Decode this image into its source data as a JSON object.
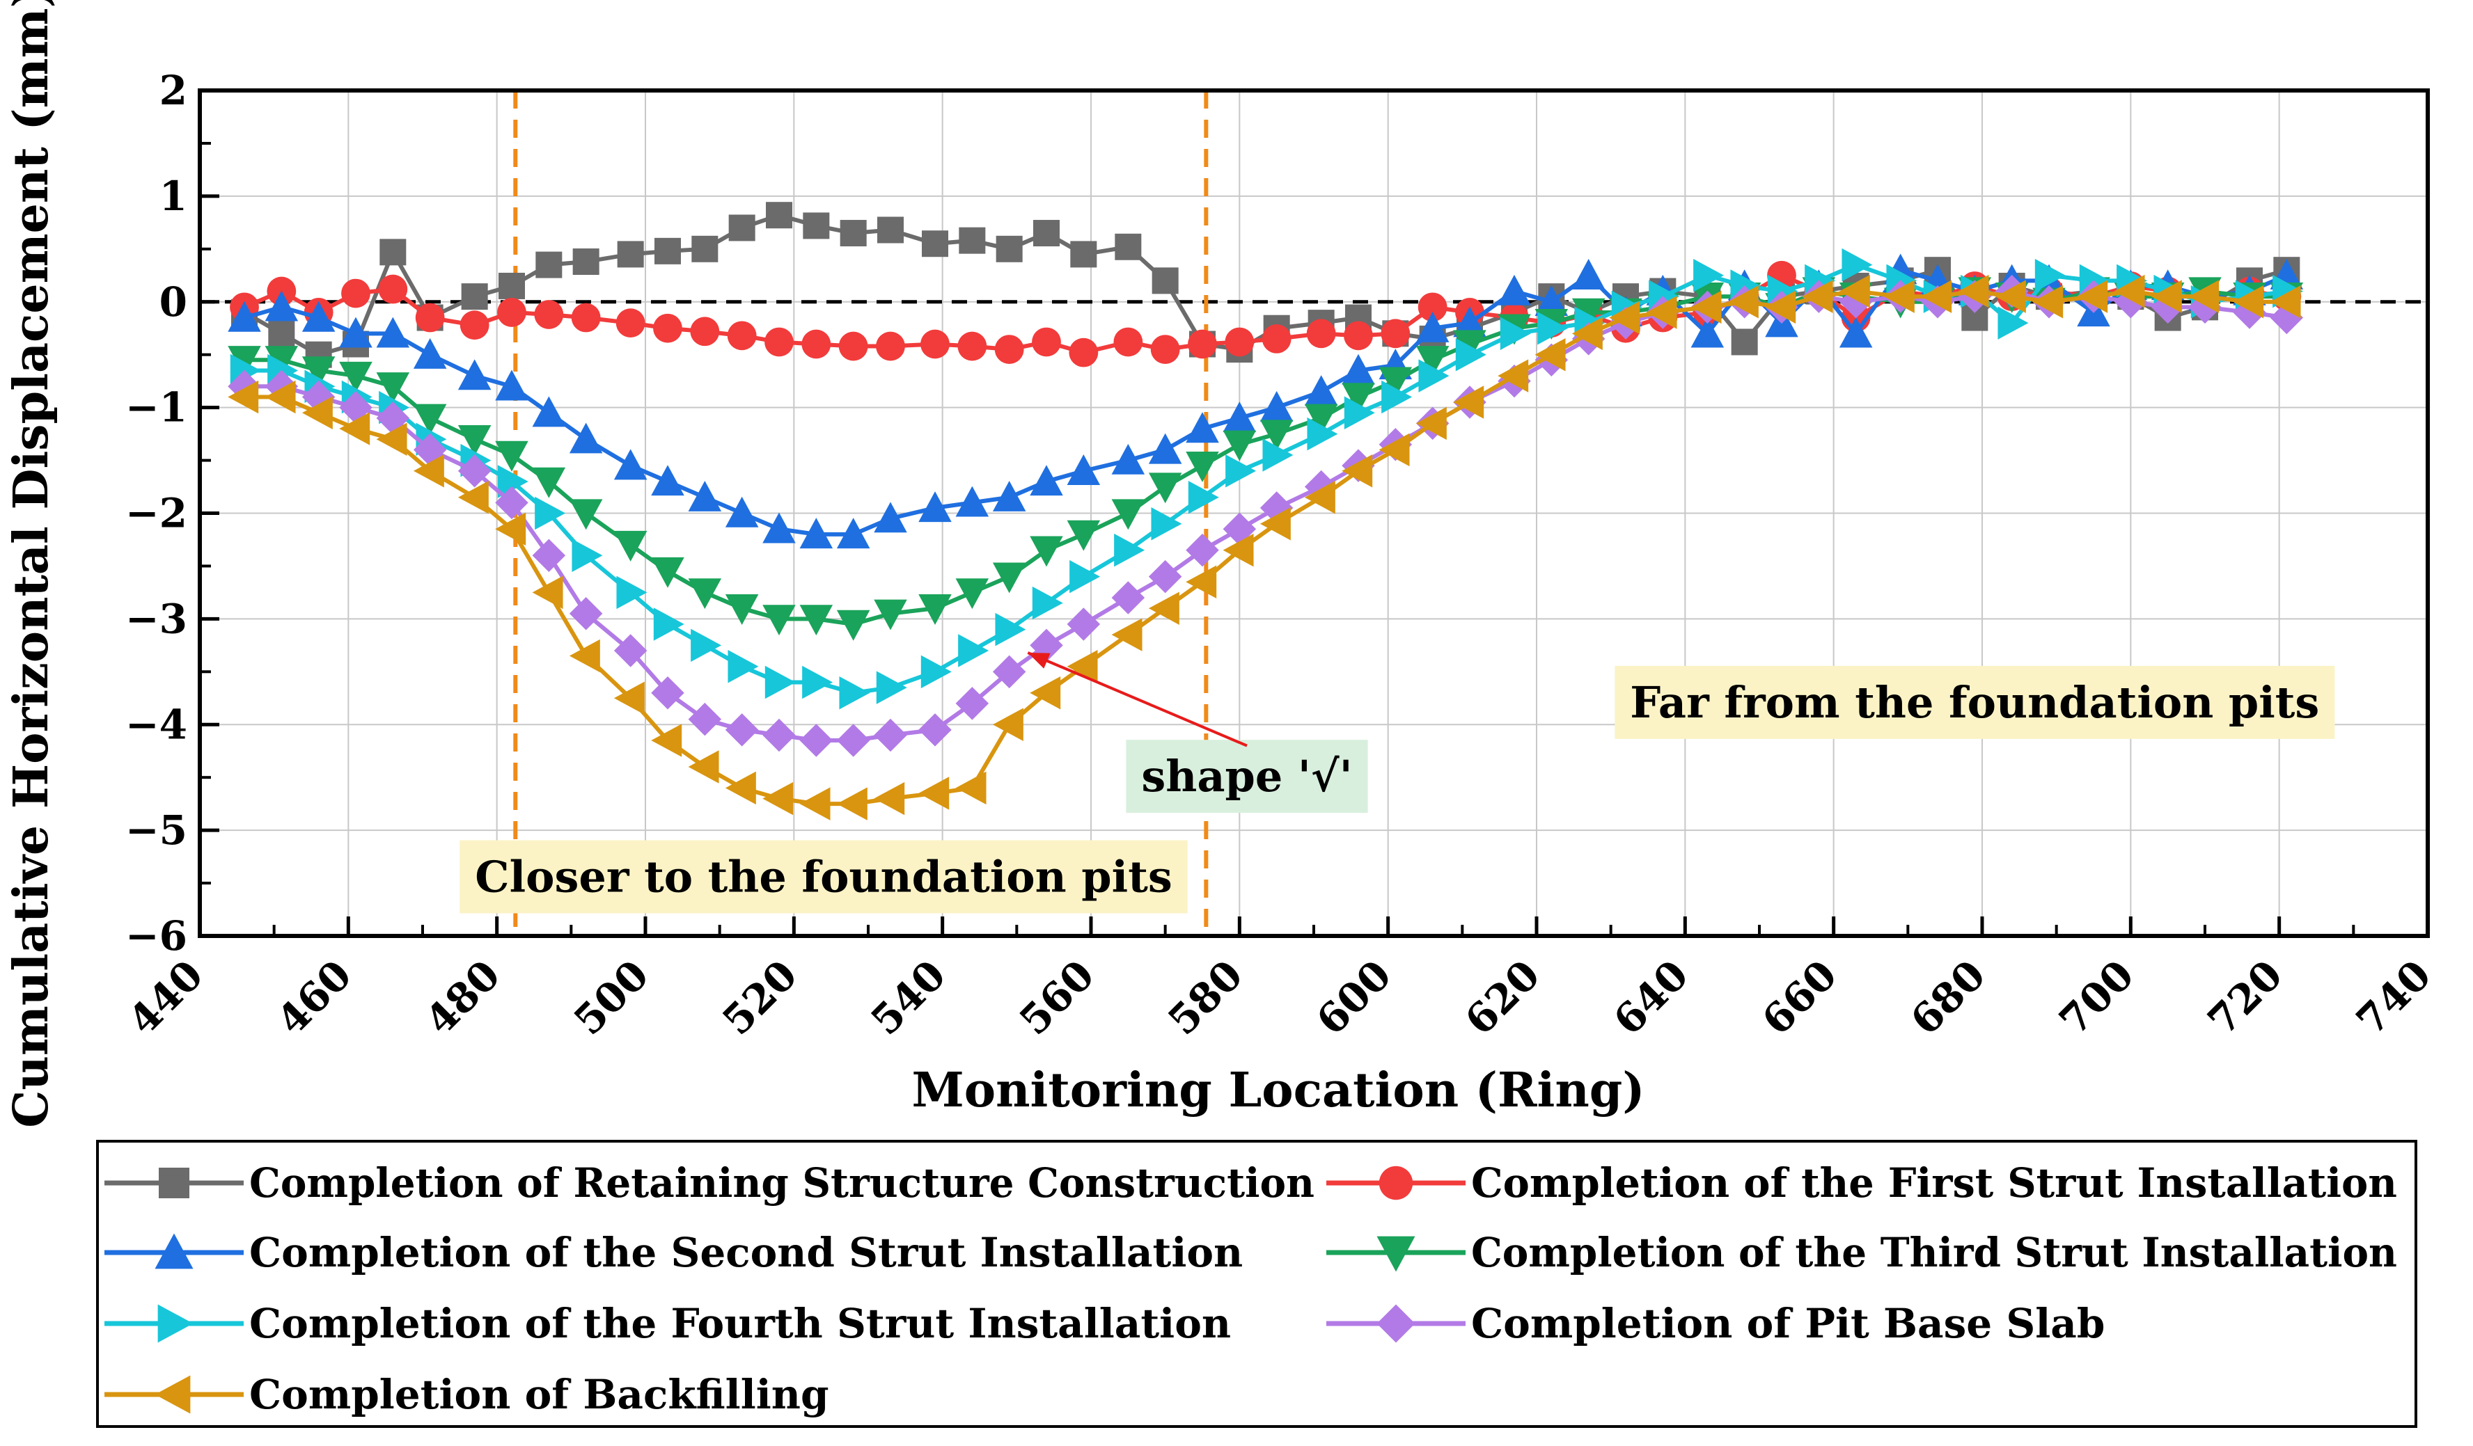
{
  "chart_data": {
    "type": "line",
    "title": "",
    "xlabel": "Monitoring Location (Ring)",
    "ylabel": "Cumulative Horizontal Displacement (mm)",
    "xlim": [
      440,
      740
    ],
    "ylim": [
      -6,
      2
    ],
    "xticks": [
      440,
      460,
      480,
      500,
      520,
      540,
      560,
      580,
      600,
      620,
      640,
      660,
      680,
      700,
      720,
      740
    ],
    "yticks": [
      2,
      1,
      0,
      -1,
      -2,
      -3,
      -4,
      -5,
      -6
    ],
    "ytick_labels": [
      "2",
      "1",
      "0",
      "−1",
      "−2",
      "−3",
      "−4",
      "−5",
      "−6"
    ],
    "grid": true,
    "reference_line_y": 0,
    "zone_boundaries_x": [
      482.5,
      575.5
    ],
    "series": [
      {
        "name": "Completion of Retaining Structure Construction",
        "color": "#6b6b6b",
        "marker": "square",
        "x": [
          446,
          451,
          456,
          461,
          466,
          471,
          477,
          482,
          487,
          492,
          498,
          503,
          508,
          513,
          518,
          523,
          528,
          533,
          539,
          544,
          549,
          554,
          559,
          565,
          570,
          575,
          580,
          585,
          591,
          596,
          601,
          606,
          611,
          617,
          622,
          627,
          632,
          637,
          643,
          648,
          653,
          658,
          663,
          669,
          674,
          679,
          684,
          689,
          695,
          700,
          705,
          710,
          716,
          721
        ],
        "y": [
          -0.1,
          -0.3,
          -0.5,
          -0.4,
          0.47,
          -0.15,
          0.05,
          0.15,
          0.35,
          0.38,
          0.45,
          0.48,
          0.5,
          0.7,
          0.82,
          0.72,
          0.65,
          0.68,
          0.55,
          0.58,
          0.5,
          0.65,
          0.45,
          0.52,
          0.2,
          -0.4,
          -0.45,
          -0.25,
          -0.2,
          -0.15,
          -0.3,
          -0.35,
          -0.25,
          -0.1,
          0.05,
          -0.1,
          0.05,
          0.1,
          0.05,
          -0.38,
          0.05,
          0.1,
          0.15,
          0.2,
          0.3,
          -0.15,
          0.15,
          0.05,
          0.1,
          0.05,
          -0.15,
          -0.05,
          0.2,
          0.3
        ]
      },
      {
        "name": "Completion of the First Strut Installation",
        "color": "#f23b3b",
        "marker": "circle",
        "x": [
          446,
          451,
          456,
          461,
          466,
          471,
          477,
          482,
          487,
          492,
          498,
          503,
          508,
          513,
          518,
          523,
          528,
          533,
          539,
          544,
          549,
          554,
          559,
          565,
          570,
          575,
          580,
          585,
          591,
          596,
          601,
          606,
          611,
          617,
          622,
          627,
          632,
          637,
          643,
          648,
          653,
          658,
          663,
          669,
          674,
          679,
          684,
          689,
          695,
          700,
          705,
          710,
          716,
          721
        ],
        "y": [
          -0.05,
          0.1,
          -0.1,
          0.08,
          0.12,
          -0.15,
          -0.22,
          -0.1,
          -0.12,
          -0.15,
          -0.2,
          -0.25,
          -0.28,
          -0.32,
          -0.38,
          -0.4,
          -0.42,
          -0.42,
          -0.4,
          -0.42,
          -0.45,
          -0.38,
          -0.48,
          -0.38,
          -0.45,
          -0.4,
          -0.38,
          -0.35,
          -0.3,
          -0.32,
          -0.3,
          -0.05,
          -0.1,
          -0.15,
          -0.2,
          -0.12,
          -0.25,
          -0.15,
          -0.1,
          0.05,
          0.25,
          0.1,
          -0.15,
          0.1,
          0.05,
          0.15,
          0.05,
          0.1,
          0.05,
          0.15,
          0.1,
          0.05,
          0.1,
          0.05
        ]
      },
      {
        "name": "Completion of the Second Strut Installation",
        "color": "#1f6fe0",
        "marker": "triangle-up",
        "x": [
          446,
          451,
          456,
          461,
          466,
          471,
          477,
          482,
          487,
          492,
          498,
          503,
          508,
          513,
          518,
          523,
          528,
          533,
          539,
          544,
          549,
          554,
          559,
          565,
          570,
          575,
          580,
          585,
          591,
          596,
          601,
          606,
          611,
          617,
          622,
          627,
          632,
          637,
          643,
          648,
          653,
          658,
          663,
          669,
          674,
          679,
          684,
          689,
          695,
          700,
          705,
          710,
          716,
          721
        ],
        "y": [
          -0.15,
          -0.05,
          -0.15,
          -0.3,
          -0.3,
          -0.5,
          -0.7,
          -0.8,
          -1.05,
          -1.3,
          -1.55,
          -1.7,
          -1.85,
          -2.0,
          -2.15,
          -2.2,
          -2.2,
          -2.05,
          -1.95,
          -1.9,
          -1.85,
          -1.7,
          -1.6,
          -1.5,
          -1.4,
          -1.2,
          -1.1,
          -1.0,
          -0.85,
          -0.65,
          -0.6,
          -0.25,
          -0.2,
          0.1,
          0.0,
          0.25,
          -0.1,
          0.1,
          -0.3,
          0.15,
          -0.2,
          0.15,
          -0.3,
          0.3,
          0.2,
          0.1,
          0.2,
          0.2,
          -0.1,
          0.15,
          0.15,
          0.05,
          0.1,
          0.25
        ]
      },
      {
        "name": "Completion of the Third Strut Installation",
        "color": "#1aa35a",
        "marker": "triangle-down",
        "x": [
          446,
          451,
          456,
          461,
          466,
          471,
          477,
          482,
          487,
          492,
          498,
          503,
          508,
          513,
          518,
          523,
          528,
          533,
          539,
          544,
          549,
          554,
          559,
          565,
          570,
          575,
          580,
          585,
          591,
          596,
          601,
          606,
          611,
          617,
          622,
          627,
          632,
          637,
          643,
          648,
          653,
          658,
          663,
          669,
          674,
          679,
          684,
          689,
          695,
          700,
          705,
          710,
          716,
          721
        ],
        "y": [
          -0.55,
          -0.55,
          -0.65,
          -0.7,
          -0.8,
          -1.1,
          -1.3,
          -1.45,
          -1.7,
          -2.0,
          -2.3,
          -2.55,
          -2.75,
          -2.9,
          -3.0,
          -3.0,
          -3.05,
          -2.95,
          -2.9,
          -2.75,
          -2.6,
          -2.35,
          -2.2,
          -2.0,
          -1.75,
          -1.55,
          -1.35,
          -1.25,
          -1.1,
          -0.9,
          -0.75,
          -0.55,
          -0.4,
          -0.25,
          -0.2,
          -0.1,
          -0.1,
          -0.05,
          0.05,
          0.05,
          -0.05,
          0.1,
          0.05,
          0.0,
          0.0,
          0.1,
          0.05,
          0.0,
          0.1,
          0.05,
          0.05,
          0.1,
          0.05,
          0.05
        ]
      },
      {
        "name": "Completion of the Fourth Strut Installation",
        "color": "#17c6d9",
        "marker": "triangle-right",
        "x": [
          446,
          451,
          456,
          461,
          466,
          471,
          477,
          482,
          487,
          492,
          498,
          503,
          508,
          513,
          518,
          523,
          528,
          533,
          539,
          544,
          549,
          554,
          559,
          565,
          570,
          575,
          580,
          585,
          591,
          596,
          601,
          606,
          611,
          617,
          622,
          627,
          632,
          637,
          643,
          648,
          653,
          658,
          663,
          669,
          674,
          679,
          684,
          689,
          695,
          700,
          705,
          710,
          716,
          721
        ],
        "y": [
          -0.65,
          -0.65,
          -0.8,
          -0.9,
          -1.0,
          -1.3,
          -1.5,
          -1.7,
          -2.0,
          -2.4,
          -2.75,
          -3.05,
          -3.25,
          -3.45,
          -3.6,
          -3.6,
          -3.7,
          -3.65,
          -3.5,
          -3.3,
          -3.1,
          -2.85,
          -2.6,
          -2.35,
          -2.1,
          -1.85,
          -1.6,
          -1.45,
          -1.25,
          -1.05,
          -0.9,
          -0.7,
          -0.5,
          -0.3,
          -0.25,
          -0.2,
          -0.05,
          0.05,
          0.25,
          0.15,
          0.1,
          0.2,
          0.35,
          0.2,
          0.05,
          0.1,
          -0.2,
          0.25,
          0.2,
          0.2,
          0.1,
          0.0,
          0.05,
          0.1
        ]
      },
      {
        "name": "Completion of Pit Base Slab",
        "color": "#b27ae6",
        "marker": "diamond",
        "x": [
          446,
          451,
          456,
          461,
          466,
          471,
          477,
          482,
          487,
          492,
          498,
          503,
          508,
          513,
          518,
          523,
          528,
          533,
          539,
          544,
          549,
          554,
          559,
          565,
          570,
          575,
          580,
          585,
          591,
          596,
          601,
          606,
          611,
          617,
          622,
          627,
          632,
          637,
          643,
          648,
          653,
          658,
          663,
          669,
          674,
          679,
          684,
          689,
          695,
          700,
          705,
          710,
          716,
          721
        ],
        "y": [
          -0.8,
          -0.8,
          -0.9,
          -1.0,
          -1.1,
          -1.4,
          -1.6,
          -1.9,
          -2.4,
          -2.95,
          -3.3,
          -3.7,
          -3.95,
          -4.05,
          -4.1,
          -4.15,
          -4.15,
          -4.1,
          -4.05,
          -3.8,
          -3.5,
          -3.25,
          -3.05,
          -2.8,
          -2.6,
          -2.35,
          -2.15,
          -1.95,
          -1.75,
          -1.55,
          -1.35,
          -1.15,
          -0.95,
          -0.75,
          -0.55,
          -0.35,
          -0.2,
          -0.1,
          -0.05,
          0.0,
          -0.05,
          0.05,
          0.0,
          0.05,
          0.0,
          0.05,
          0.1,
          0.0,
          0.05,
          0.0,
          -0.05,
          -0.05,
          -0.1,
          -0.15
        ]
      },
      {
        "name": "Completion of Backfilling",
        "color": "#d9950f",
        "marker": "triangle-left",
        "x": [
          446,
          451,
          456,
          461,
          466,
          471,
          477,
          482,
          487,
          492,
          498,
          503,
          508,
          513,
          518,
          523,
          528,
          533,
          539,
          544,
          549,
          554,
          559,
          565,
          570,
          575,
          580,
          585,
          591,
          596,
          601,
          606,
          611,
          617,
          622,
          627,
          632,
          637,
          643,
          648,
          653,
          658,
          663,
          669,
          674,
          679,
          684,
          689,
          695,
          700,
          705,
          710,
          716,
          721
        ],
        "y": [
          -0.9,
          -0.9,
          -1.05,
          -1.2,
          -1.3,
          -1.6,
          -1.85,
          -2.15,
          -2.75,
          -3.35,
          -3.75,
          -4.15,
          -4.4,
          -4.6,
          -4.7,
          -4.75,
          -4.75,
          -4.7,
          -4.65,
          -4.6,
          -4.0,
          -3.7,
          -3.45,
          -3.15,
          -2.9,
          -2.65,
          -2.35,
          -2.1,
          -1.85,
          -1.6,
          -1.4,
          -1.15,
          -0.95,
          -0.7,
          -0.5,
          -0.3,
          -0.15,
          -0.1,
          -0.05,
          0.0,
          -0.05,
          0.05,
          0.1,
          0.05,
          0.05,
          0.1,
          0.05,
          0.0,
          0.05,
          0.1,
          0.05,
          0.05,
          0.0,
          0.0
        ]
      }
    ],
    "annotations": [
      {
        "text": "Closer to the foundation pits",
        "x": 524,
        "y": -5.45,
        "background": "#fbf3c6",
        "color": "#000000"
      },
      {
        "text": "Far from the foundation pits",
        "x": 679,
        "y": -3.8,
        "background": "#fbf3c6",
        "color": "#000000"
      },
      {
        "text": "shape '√'",
        "x": 581,
        "y": -4.5,
        "background": "#d9efde",
        "color": "#1515c8"
      }
    ],
    "legend_placement": "bottom"
  }
}
